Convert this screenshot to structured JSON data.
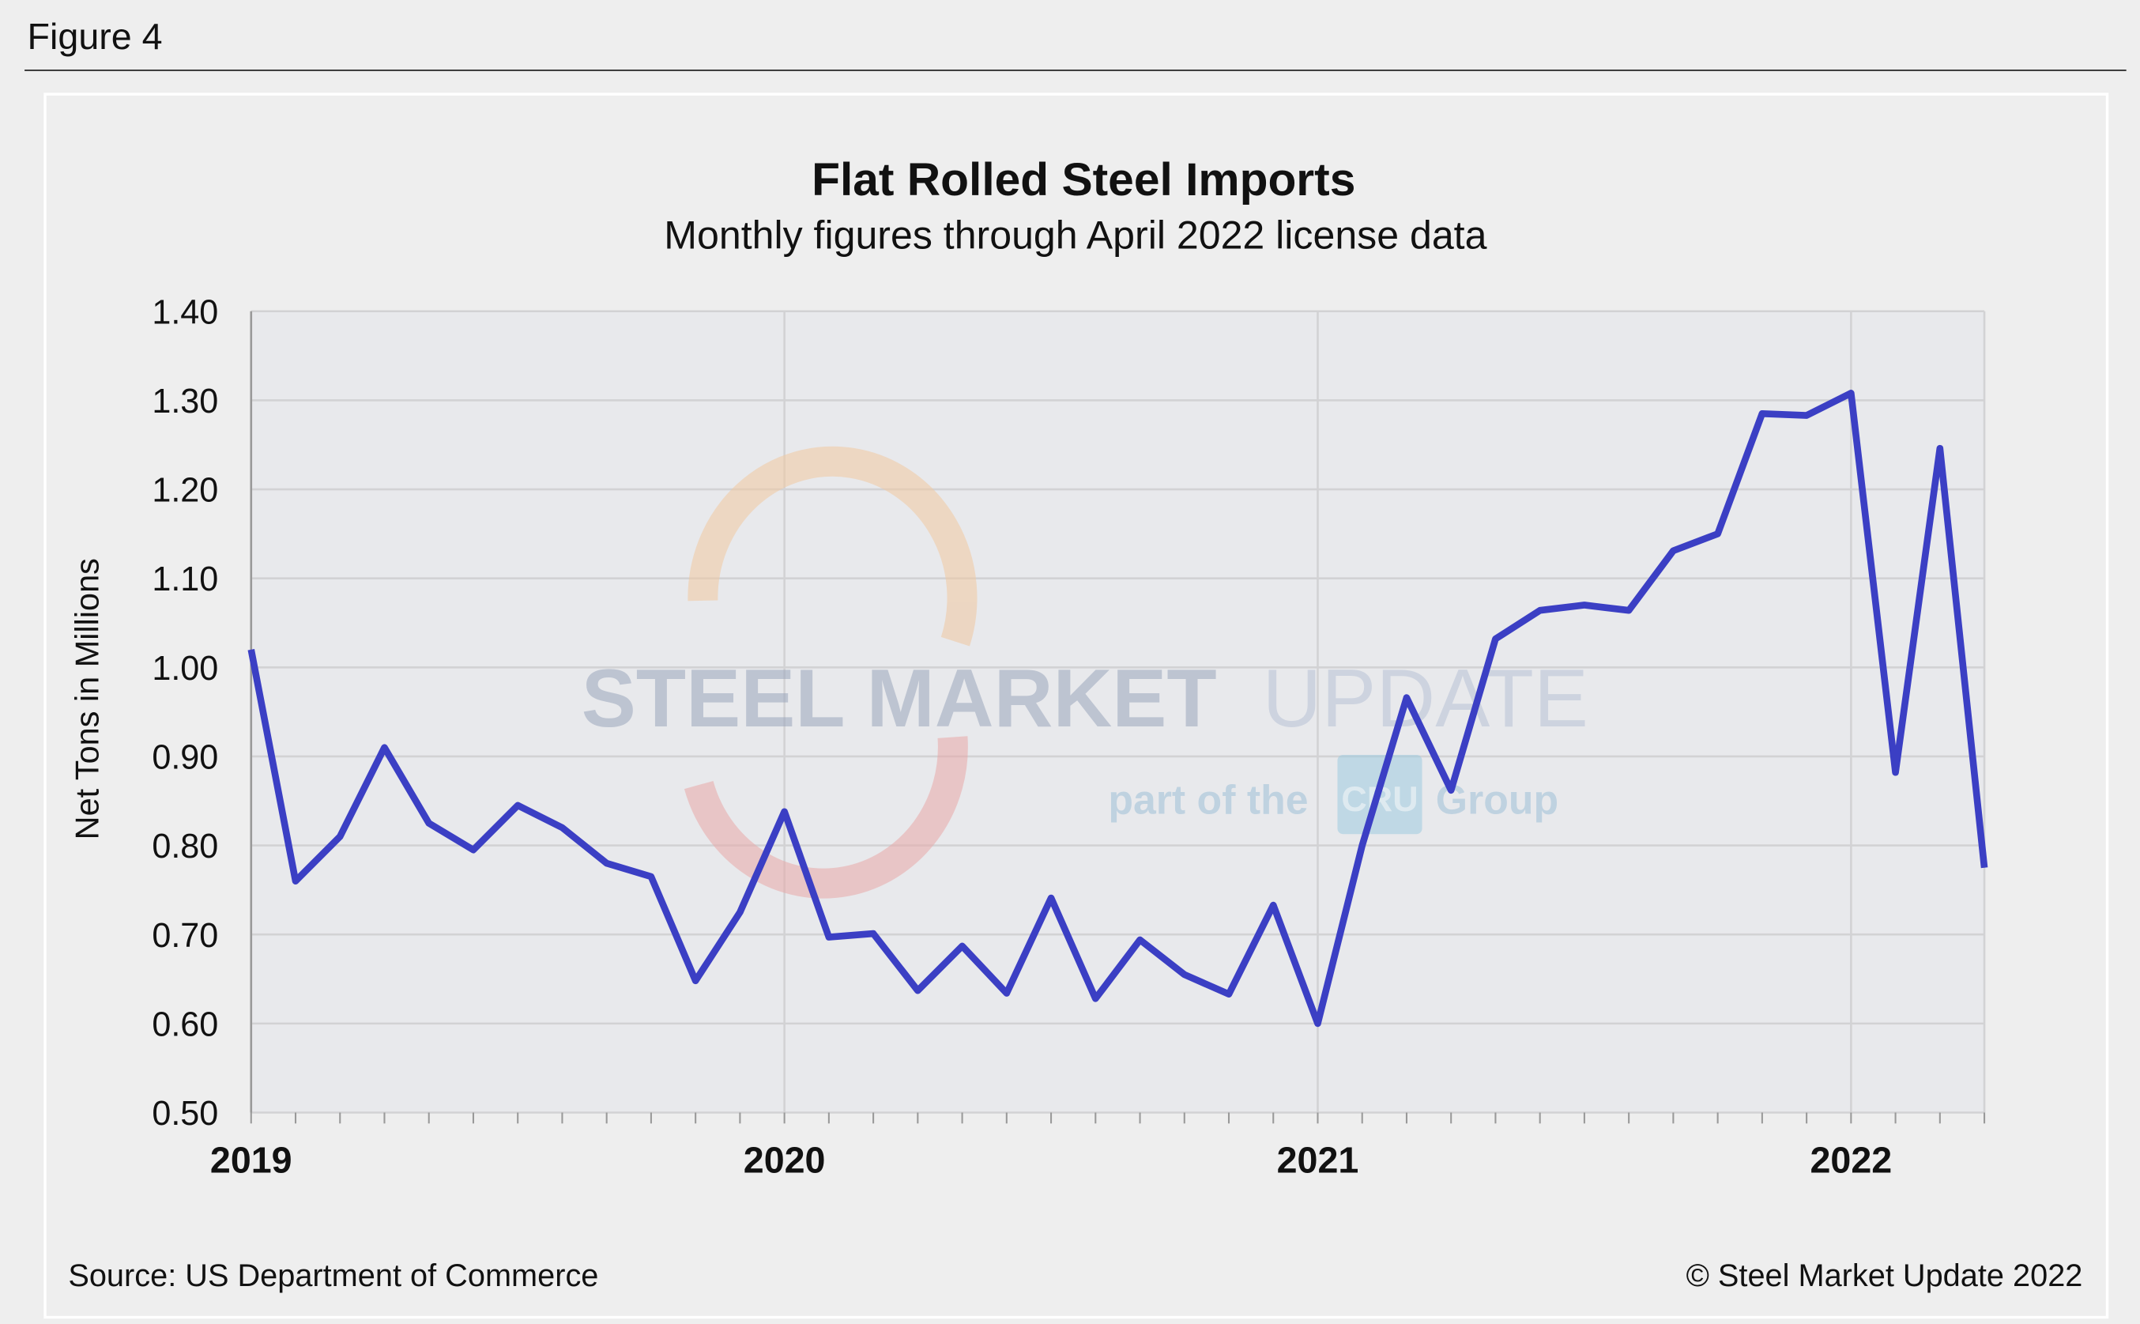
{
  "figure_label": "Figure 4",
  "source": "Source: US Department of Commerce",
  "copyright": "© Steel Market Update 2022",
  "watermark": {
    "line1_bold": "STEEL MARKET",
    "line1_light": "UPDATE",
    "line2": "part of the",
    "badge": "CRU",
    "line3": "Group"
  },
  "colors": {
    "line": "#3b3fc4",
    "plot_bg": "#e8e9ec",
    "grid": "#d2d2d4"
  },
  "chart_data": {
    "type": "line",
    "title": "Flat Rolled Steel Imports",
    "subtitle": "Monthly figures through April 2022 license data",
    "ylabel": "Net Tons in Millions",
    "xlabel": "",
    "ylim": [
      0.5,
      1.4
    ],
    "yticks": [
      "0.50",
      "0.60",
      "0.70",
      "0.80",
      "0.90",
      "1.00",
      "1.10",
      "1.20",
      "1.30",
      "1.40"
    ],
    "xticks": [
      "2019",
      "2020",
      "2021",
      "2022"
    ],
    "grid": true,
    "x_start": "2019-01",
    "x_end": "2022-04",
    "x": [
      "2019-01",
      "2019-02",
      "2019-03",
      "2019-04",
      "2019-05",
      "2019-06",
      "2019-07",
      "2019-08",
      "2019-09",
      "2019-10",
      "2019-11",
      "2019-12",
      "2020-01",
      "2020-02",
      "2020-03",
      "2020-04",
      "2020-05",
      "2020-06",
      "2020-07",
      "2020-08",
      "2020-09",
      "2020-10",
      "2020-11",
      "2020-12",
      "2021-01",
      "2021-02",
      "2021-03",
      "2021-04",
      "2021-05",
      "2021-06",
      "2021-07",
      "2021-08",
      "2021-09",
      "2021-10",
      "2021-11",
      "2021-12",
      "2022-01",
      "2022-02",
      "2022-03",
      "2022-04"
    ],
    "values": [
      1.02,
      0.76,
      0.81,
      0.91,
      0.825,
      0.795,
      0.845,
      0.82,
      0.78,
      0.765,
      0.648,
      0.725,
      0.838,
      0.697,
      0.701,
      0.637,
      0.687,
      0.634,
      0.741,
      0.628,
      0.694,
      0.655,
      0.633,
      0.733,
      0.6,
      0.8,
      0.966,
      0.862,
      1.032,
      1.064,
      1.07,
      1.064,
      1.131,
      1.15,
      1.285,
      1.283,
      1.308,
      0.882,
      1.246,
      0.775
    ]
  }
}
